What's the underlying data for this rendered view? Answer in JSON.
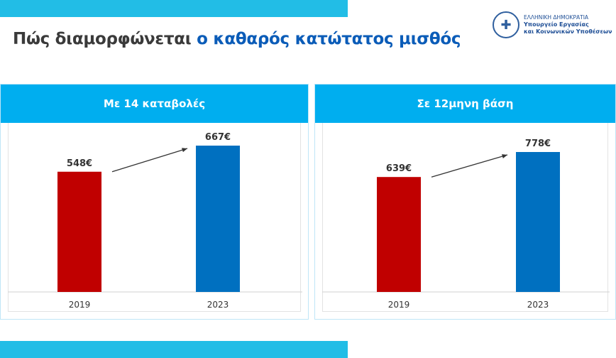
{
  "title": {
    "part1": "Πώς διαμορφώνεται ",
    "part2": "ο καθαρός κατώτατος μισθός"
  },
  "logo": {
    "line1": "ΕΛΛΗΝΙΚΗ ΔΗΜΟΚΡΑΤΙΑ",
    "line2": "Υπουργείο Εργασίας",
    "line3": "και Κοινωνικών Υποθέσεων"
  },
  "colors": {
    "red": "#c00000",
    "blue": "#0070c0",
    "header": "#00aeef"
  },
  "chart_data": [
    {
      "type": "bar",
      "title": "Με 14 καταβολές",
      "categories": [
        "2019",
        "2023"
      ],
      "values": [
        548,
        667
      ],
      "labels": [
        "548€",
        "667€"
      ]
    },
    {
      "type": "bar",
      "title": "Σε 12μηνη βάση",
      "categories": [
        "2019",
        "2023"
      ],
      "values": [
        639,
        778
      ],
      "labels": [
        "639€",
        "778€"
      ]
    }
  ]
}
